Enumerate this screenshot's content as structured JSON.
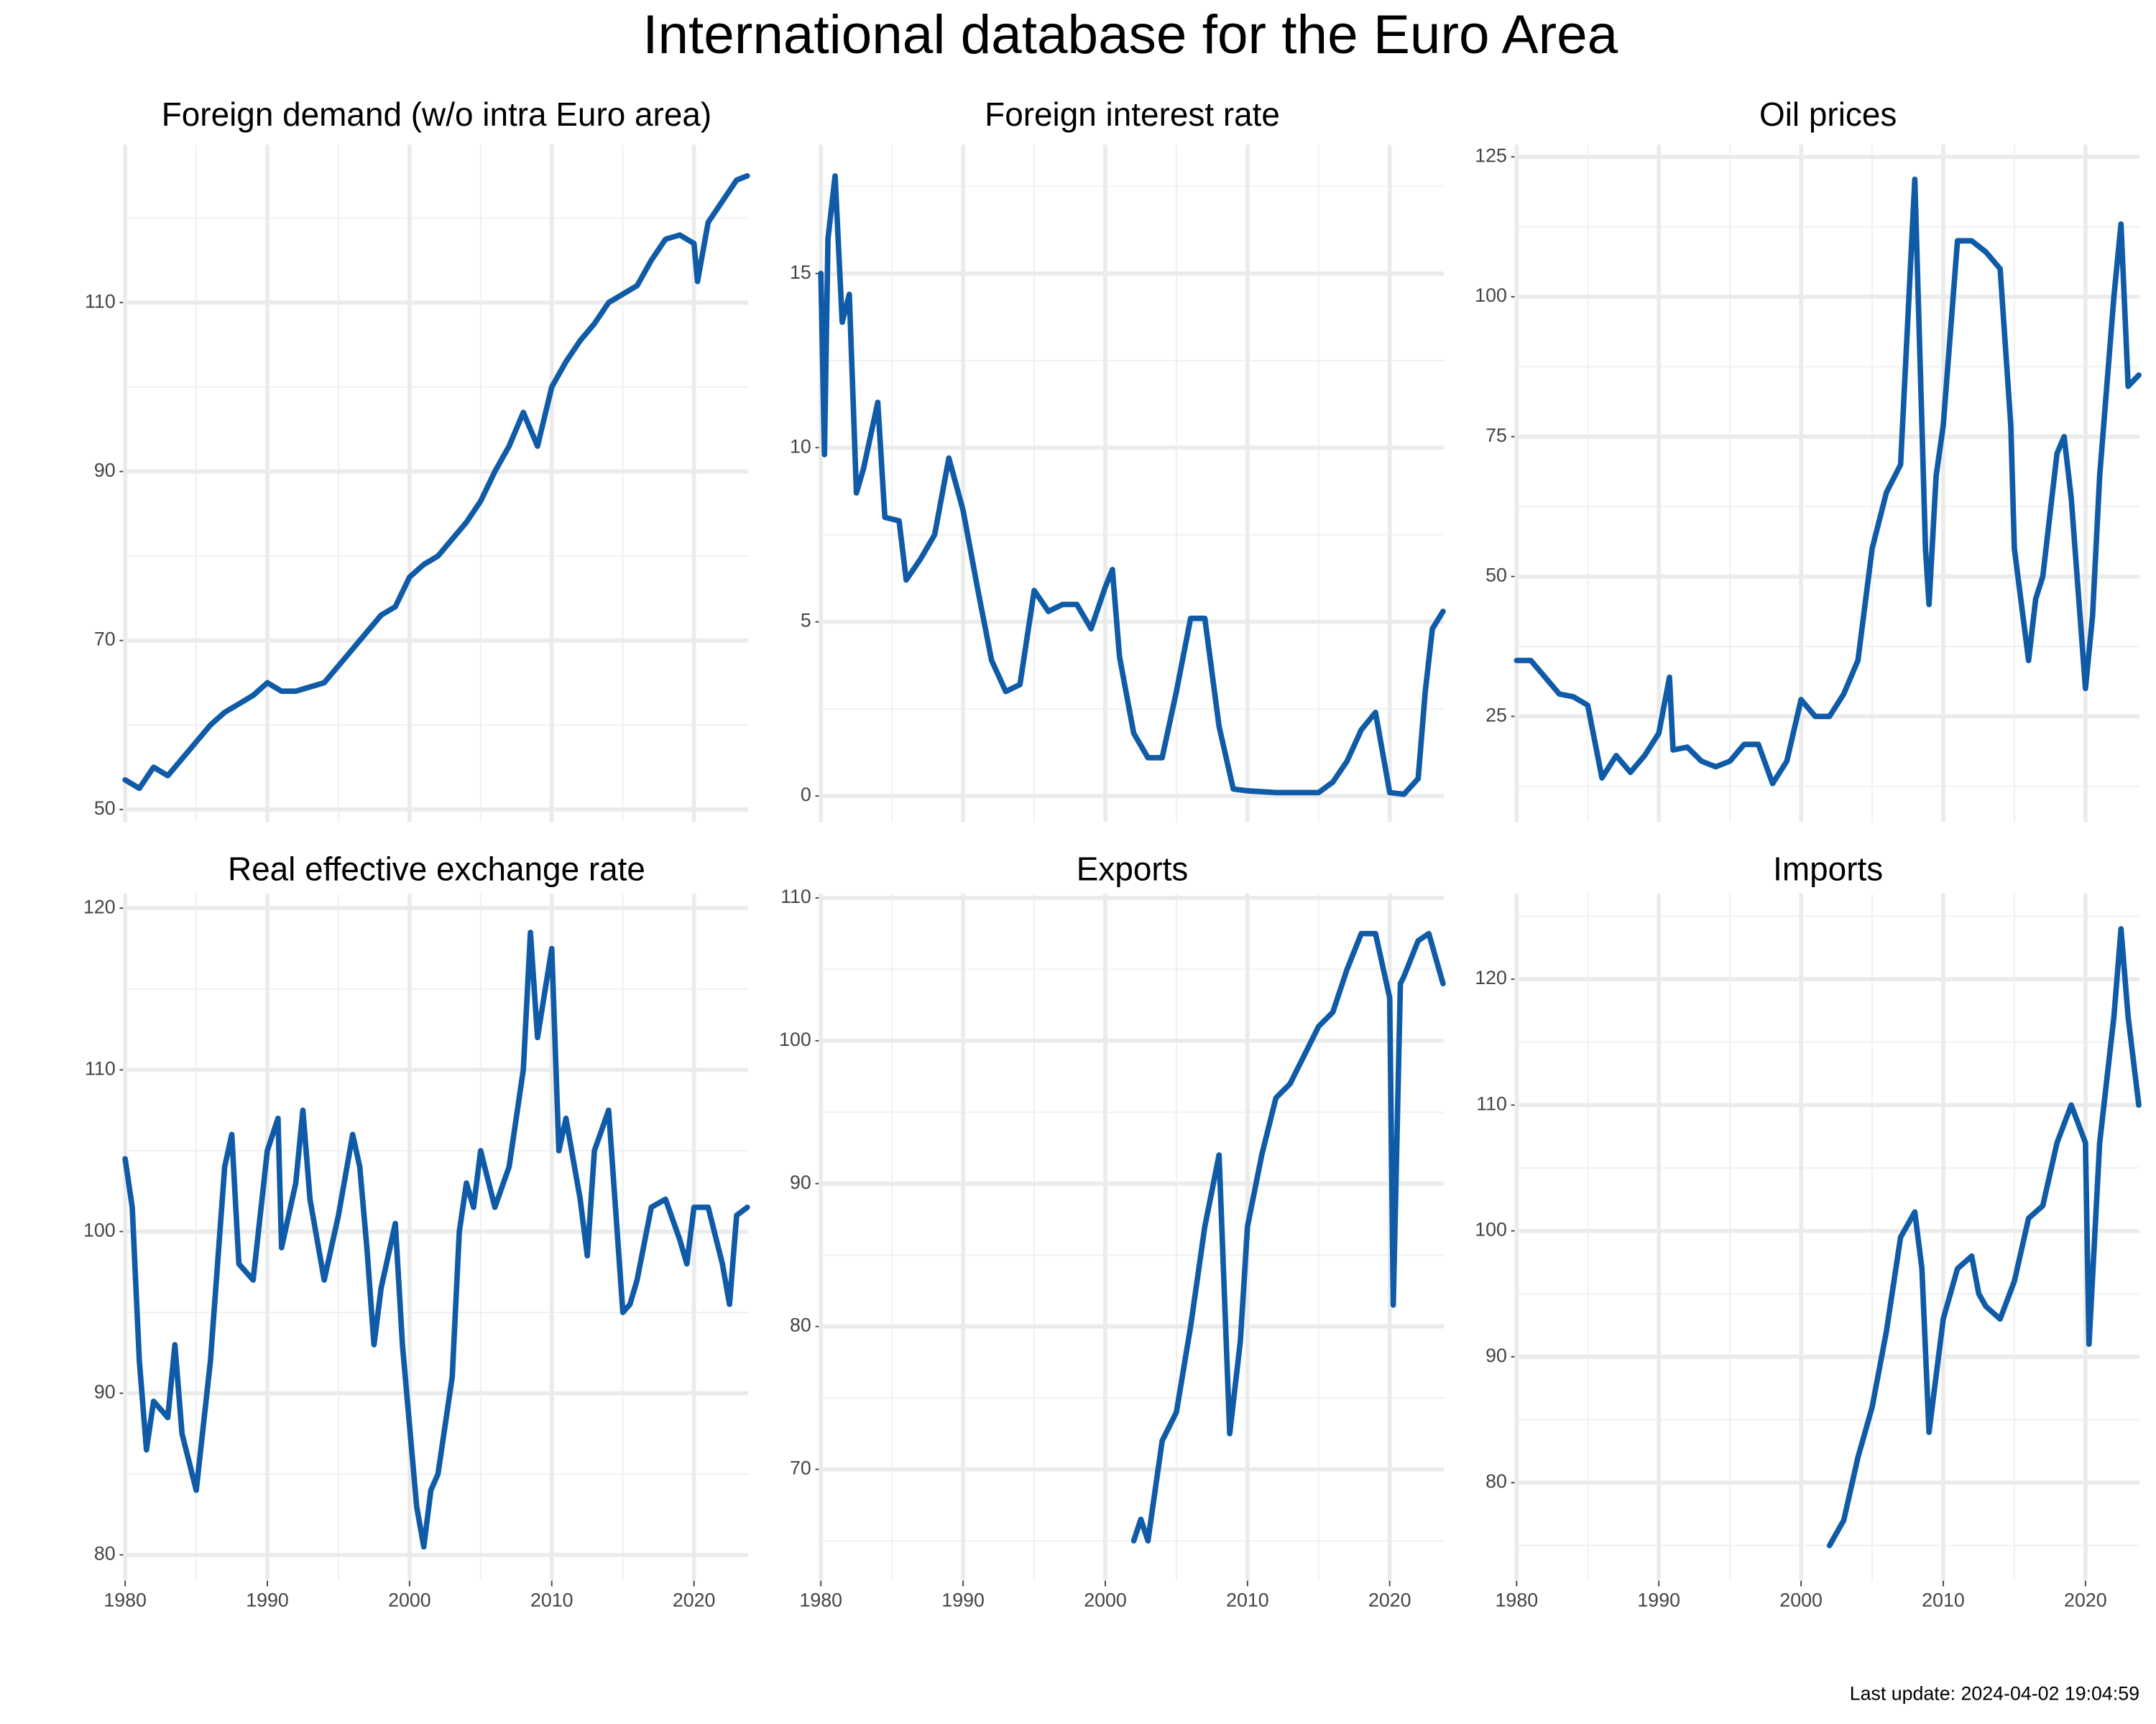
{
  "title": "International database for the Euro Area",
  "footer": "Last update: 2024-04-02 19:04:59",
  "chart_data": [
    {
      "type": "line",
      "title": "Foreign demand (w/o intra Euro area)",
      "color": "#0f5ba7",
      "x": [
        1980,
        1981,
        1982,
        1983,
        1984,
        1985,
        1986,
        1987,
        1988,
        1989,
        1990,
        1991,
        1992,
        1993,
        1994,
        1995,
        1996,
        1997,
        1998,
        1999,
        2000,
        2001,
        2002,
        2003,
        2004,
        2005,
        2006,
        2007,
        2008,
        2009,
        2010,
        2011,
        2012,
        2013,
        2014,
        2015,
        2016,
        2017,
        2018,
        2019,
        2020,
        2020.25,
        2021,
        2022,
        2023,
        2023.75
      ],
      "values": [
        53.5,
        52.5,
        55,
        54,
        56,
        58,
        60,
        61.5,
        62.5,
        63.5,
        65,
        64,
        64,
        64.5,
        65,
        67,
        69,
        71,
        73,
        74,
        77.5,
        79,
        80,
        82,
        84,
        86.5,
        90,
        93,
        97,
        93,
        100,
        103,
        105.5,
        107.5,
        110,
        111,
        112,
        115,
        117.5,
        118,
        117,
        112.5,
        119.5,
        122,
        124.5,
        125
      ],
      "xlim": [
        1980,
        2023.8
      ],
      "ylim": [
        48.5,
        128.7
      ],
      "xticks": [
        1980,
        1990,
        2000,
        2010,
        2020
      ],
      "yticks": [
        50,
        70,
        90,
        110
      ]
    },
    {
      "type": "line",
      "title": "Foreign interest rate",
      "color": "#0f5ba7",
      "x": [
        1980,
        1980.25,
        1980.5,
        1981,
        1981.5,
        1982,
        1982.5,
        1983,
        1984,
        1984.5,
        1985.5,
        1986,
        1987,
        1988,
        1989,
        1990,
        1991,
        1992,
        1993,
        1994,
        1995,
        1996,
        1997,
        1998,
        1999,
        2000,
        2000.5,
        2001,
        2002,
        2003,
        2004,
        2005,
        2006,
        2007,
        2008,
        2009,
        2010,
        2012,
        2015,
        2016,
        2017,
        2018,
        2019,
        2020,
        2021,
        2022,
        2022.5,
        2023,
        2023.75
      ],
      "values": [
        15,
        9.8,
        16,
        17.8,
        13.6,
        14.4,
        8.7,
        9.4,
        11.3,
        8,
        7.9,
        6.2,
        6.8,
        7.5,
        9.7,
        8.2,
        6,
        3.9,
        3,
        3.2,
        5.9,
        5.3,
        5.5,
        5.5,
        4.8,
        6,
        6.5,
        4,
        1.8,
        1.1,
        1.1,
        3,
        5.1,
        5.1,
        2,
        0.2,
        0.15,
        0.1,
        0.1,
        0.4,
        1,
        1.9,
        2.4,
        0.1,
        0.05,
        0.5,
        3,
        4.8,
        5.3
      ],
      "xlim": [
        1980,
        2023.8
      ],
      "ylim": [
        -0.75,
        18.7
      ],
      "xticks": [
        1980,
        1990,
        2000,
        2010,
        2020
      ],
      "yticks": [
        0,
        5,
        10,
        15
      ]
    },
    {
      "type": "line",
      "title": "Oil prices",
      "color": "#0f5ba7",
      "x": [
        1980,
        1981,
        1982,
        1983,
        1984,
        1985,
        1986,
        1987,
        1988,
        1989,
        1990,
        1990.75,
        1991,
        1992,
        1993,
        1994,
        1995,
        1996,
        1997,
        1998,
        1999,
        2000,
        2001,
        2002,
        2003,
        2004,
        2005,
        2006,
        2007,
        2008,
        2008.75,
        2009,
        2009.5,
        2010,
        2011,
        2012,
        2013,
        2014,
        2014.75,
        2015,
        2016,
        2016.5,
        2017,
        2018,
        2018.5,
        2019,
        2020,
        2020.5,
        2021,
        2022,
        2022.5,
        2023,
        2023.75
      ],
      "values": [
        35,
        35,
        32,
        29,
        28.5,
        27,
        14,
        18,
        15,
        18,
        22,
        32,
        19,
        19.5,
        17,
        16,
        17,
        20,
        20,
        13,
        17,
        28,
        25,
        25,
        29,
        35,
        55,
        65,
        70,
        121,
        55,
        45,
        68,
        77,
        110,
        110,
        108,
        105,
        77,
        55,
        35,
        46,
        50,
        72,
        75,
        64,
        30,
        43,
        68,
        100,
        113,
        84,
        86
      ],
      "xlim": [
        1980,
        2023.8
      ],
      "ylim": [
        6.1,
        127.2
      ],
      "xticks": [
        1980,
        1990,
        2000,
        2010,
        2020
      ],
      "yticks": [
        25,
        50,
        75,
        100,
        125
      ]
    },
    {
      "type": "line",
      "title": "Real effective exchange rate",
      "color": "#0f5ba7",
      "x": [
        1980,
        1980.5,
        1981,
        1981.5,
        1982,
        1983,
        1983.5,
        1984,
        1985,
        1986,
        1987,
        1987.5,
        1988,
        1989,
        1990,
        1990.75,
        1991,
        1992,
        1992.5,
        1993,
        1994,
        1995,
        1996,
        1996.5,
        1997,
        1997.5,
        1998,
        1999,
        1999.5,
        2000,
        2000.5,
        2001,
        2001.5,
        2002,
        2003,
        2003.5,
        2004,
        2004.5,
        2005,
        2006,
        2007,
        2008,
        2008.5,
        2009,
        2010,
        2010.5,
        2011,
        2012,
        2012.5,
        2013,
        2014,
        2015,
        2015.5,
        2016,
        2017,
        2018,
        2019,
        2019.5,
        2020,
        2021,
        2022,
        2022.5,
        2023,
        2023.75
      ],
      "values": [
        104.5,
        101.5,
        92,
        86.5,
        89.5,
        88.5,
        93,
        87.5,
        84,
        92,
        104,
        106,
        98,
        97,
        105,
        107,
        99,
        103,
        107.5,
        102,
        97,
        101,
        106,
        104,
        99,
        93,
        96.5,
        100.5,
        93,
        88,
        83,
        80.5,
        84,
        85,
        91,
        100,
        103,
        101.5,
        105,
        101.5,
        104,
        110,
        118.5,
        112,
        117.5,
        105,
        107,
        102,
        98.5,
        105,
        107.5,
        95,
        95.5,
        97,
        101.5,
        102,
        99.5,
        98,
        101.5,
        101.5,
        98,
        95.5,
        101,
        101.5
      ],
      "xlim": [
        1980,
        2023.8
      ],
      "ylim": [
        78.4,
        120.9
      ],
      "xticks": [
        1980,
        1990,
        2000,
        2010,
        2020
      ],
      "yticks": [
        80,
        90,
        100,
        110,
        120
      ]
    },
    {
      "type": "line",
      "title": "Exports",
      "color": "#0f5ba7",
      "x": [
        2002,
        2002.5,
        2003,
        2004,
        2005,
        2006,
        2007,
        2008,
        2008.75,
        2009.5,
        2010,
        2011,
        2012,
        2013,
        2014,
        2015,
        2016,
        2017,
        2018,
        2019,
        2020,
        2020.25,
        2020.75,
        2021,
        2022,
        2022.75,
        2023.75
      ],
      "values": [
        65,
        66.5,
        65,
        72,
        74,
        80,
        87,
        92,
        72.5,
        79,
        87,
        92,
        96,
        97,
        99,
        101,
        102,
        105,
        107.5,
        107.5,
        103,
        81.5,
        104,
        104.5,
        107,
        107.5,
        104
      ],
      "xlim": [
        1980,
        2023.8
      ],
      "ylim": [
        62.2,
        110.3
      ],
      "xticks": [
        1980,
        1990,
        2000,
        2010,
        2020
      ],
      "yticks": [
        70,
        80,
        90,
        100,
        110
      ]
    },
    {
      "type": "line",
      "title": "Imports",
      "color": "#0f5ba7",
      "x": [
        2002,
        2003,
        2004,
        2005,
        2006,
        2007,
        2008,
        2008.5,
        2009,
        2010,
        2011,
        2012,
        2012.5,
        2013,
        2014,
        2015,
        2016,
        2017,
        2018,
        2019,
        2020,
        2020.25,
        2021,
        2022,
        2022.5,
        2023,
        2023.75
      ],
      "values": [
        75,
        77,
        82,
        86,
        92,
        99.5,
        101.5,
        97,
        84,
        93,
        97,
        98,
        95,
        94,
        93,
        96,
        101,
        102,
        107,
        110,
        107,
        91,
        107,
        117,
        124,
        117,
        110
      ],
      "xlim": [
        1980,
        2023.8
      ],
      "ylim": [
        72.2,
        126.8
      ],
      "xticks": [
        1980,
        1990,
        2000,
        2010,
        2020
      ],
      "yticks": [
        80,
        90,
        100,
        110,
        120
      ]
    }
  ]
}
